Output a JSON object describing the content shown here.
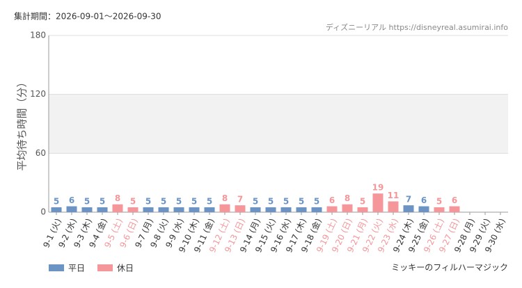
{
  "header": "集計期間：2026-09-01～2026-09-30",
  "source": "ディズニーリアル https://disneyreal.asumirai.info",
  "attraction": "ミッキーのフィルハーマジック",
  "chart_data": {
    "type": "bar",
    "y_label": "平均待ち時間（分）",
    "categories": [
      "9-1 (火)",
      "9-2 (水)",
      "9-3 (木)",
      "9-4 (金)",
      "9-5 (土)",
      "9-6 (日)",
      "9-7 (月)",
      "9-8 (火)",
      "9-9 (水)",
      "9-10 (木)",
      "9-11 (金)",
      "9-12 (土)",
      "9-13 (日)",
      "9-14 (月)",
      "9-15 (火)",
      "9-16 (水)",
      "9-17 (木)",
      "9-18 (金)",
      "9-19 (土)",
      "9-20 (日)",
      "9-21 (月)",
      "9-22 (火)",
      "9-23 (水)",
      "9-24 (木)",
      "9-25 (金)",
      "9-26 (土)",
      "9-27 (日)",
      "9-28 (月)",
      "9-29 (火)",
      "9-30 (水)"
    ],
    "series": [
      {
        "name": "平日",
        "color": "#6b93c4",
        "values": [
          5,
          6,
          5,
          5,
          null,
          null,
          5,
          5,
          5,
          5,
          5,
          null,
          null,
          5,
          5,
          5,
          5,
          5,
          null,
          null,
          null,
          null,
          null,
          7,
          6,
          null,
          null,
          null,
          null,
          null
        ]
      },
      {
        "name": "休日",
        "color": "#f4969a",
        "values": [
          null,
          null,
          null,
          null,
          8,
          5,
          null,
          null,
          null,
          null,
          null,
          8,
          7,
          null,
          null,
          null,
          null,
          null,
          6,
          8,
          5,
          19,
          11,
          null,
          null,
          5,
          6,
          null,
          null,
          null
        ]
      }
    ],
    "ylim": [
      0,
      180
    ],
    "yticks": [
      0,
      60,
      120,
      180
    ],
    "grid": true
  }
}
